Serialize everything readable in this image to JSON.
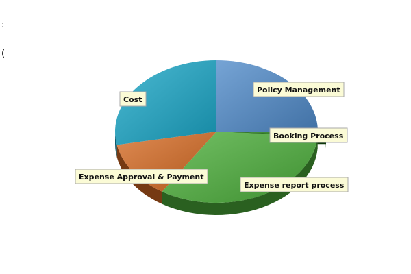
{
  "page": {
    "corner_lines": [
      ":",
      "("
    ]
  },
  "chart_data": {
    "type": "pie",
    "style": "3d",
    "title": "",
    "legend": "none",
    "labels_placement": "callout-boxes",
    "slices": [
      {
        "label": "Policy Management",
        "value": 25,
        "color": "#4f8ac9"
      },
      {
        "label": "Booking Process",
        "value": 1,
        "color": "#1f7a12"
      },
      {
        "label": "Expense report process",
        "value": 33,
        "color": "#4cae3a"
      },
      {
        "label": "Expense Approval & Payment",
        "value": 13,
        "color": "#d66a22"
      },
      {
        "label": "Cost",
        "value": 28,
        "color": "#1aa6c7"
      }
    ]
  }
}
